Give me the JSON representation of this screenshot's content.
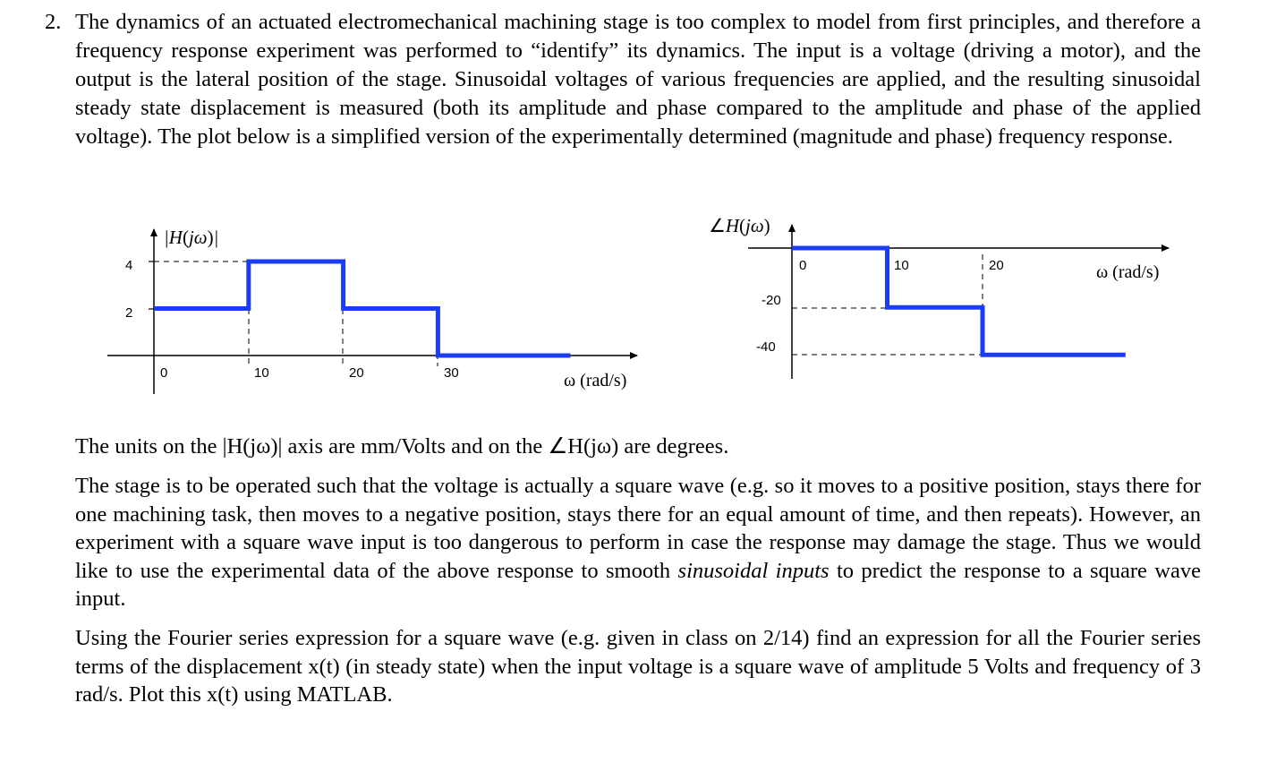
{
  "question": {
    "number": "2.",
    "intro": "The dynamics of an actuated electromechanical machining stage is too complex to model from first principles, and therefore a frequency response experiment was performed to “identify” its dynamics. The input is a voltage (driving a motor), and the output is the lateral position of the stage. Sinusoidal voltages of various frequencies are applied, and the resulting sinusoidal steady state displacement is measured (both its amplitude and phase compared to the amplitude and phase of the applied voltage). The plot below is a simplified version of the experimentally determined (magnitude and phase) frequency response.",
    "units_note": "The units on the |H(jω)| axis are mm/Volts and on the ∠H(jω) are degrees.",
    "stage_before": "The stage is to be operated such that the voltage is actually a square wave (e.g. so it moves to a positive position, stays there for one machining task, then moves to a negative position, stays there for an equal amount of time, and then repeats). However, an experiment with a square wave input is too dangerous to perform in case the response may damage the stage. Thus we would like to use the experimental data of the above response to smooth ",
    "stage_emph": "sinusoidal inputs",
    "stage_after": " to predict the response to a square wave input.",
    "task": "Using the Fourier series expression for a square wave (e.g. given in class on 2/14) find an expression for all the Fourier series terms of the displacement x(t) (in steady state) when the input voltage is a square wave of amplitude 5 Volts and frequency of 3 rad/s. Plot this x(t) using MATLAB."
  },
  "colors": {
    "trace": "#1a3cf5",
    "axis": "#000000"
  },
  "chart_data": [
    {
      "type": "line",
      "step": true,
      "title": "|H(jω)|",
      "xlabel": "ω (rad/s)",
      "ylabel": "|H(jω)|",
      "x_ticks": [
        "0",
        "10",
        "20",
        "30"
      ],
      "y_ticks": [
        "2",
        "4"
      ],
      "x": [
        0,
        10,
        10,
        20,
        20,
        30,
        30,
        44
      ],
      "y": [
        2,
        2,
        4,
        4,
        2,
        2,
        0,
        0
      ],
      "xlim": [
        0,
        44
      ],
      "ylim": [
        0,
        4
      ]
    },
    {
      "type": "line",
      "step": true,
      "title": "∠H(jω)",
      "xlabel": "ω (rad/s)",
      "ylabel": "∠H(jω)",
      "x_ticks": [
        "0",
        "10",
        "20"
      ],
      "y_ticks": [
        "-20",
        "-40"
      ],
      "x": [
        0,
        10,
        10,
        20,
        20,
        35
      ],
      "y": [
        0,
        0,
        -25,
        -25,
        -45,
        -45
      ],
      "xlim": [
        0,
        35
      ],
      "ylim": [
        -45,
        0
      ]
    }
  ]
}
